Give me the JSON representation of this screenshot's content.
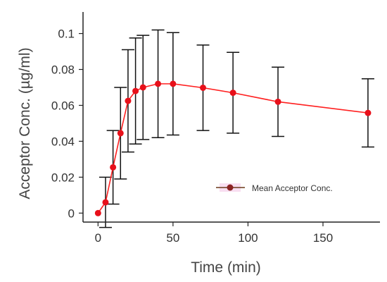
{
  "chart_data": {
    "type": "line",
    "xlabel": "Time (min)",
    "ylabel": "Acceptor Conc. (µg/ml)",
    "xlim": [
      -10,
      188
    ],
    "ylim": [
      -0.005,
      0.112
    ],
    "x_ticks": [
      0,
      50,
      100,
      150
    ],
    "y_ticks": [
      0,
      0.02,
      0.04,
      0.06,
      0.08,
      0.1
    ],
    "grid": false,
    "legend_position": "lower-right",
    "colors": {
      "line": "#ff2020",
      "marker": "#e8101a",
      "legend_marker": "#8b2323",
      "legend_line": "#6b3a1a",
      "error_bar": "#111111",
      "axis": "#222222"
    },
    "series": [
      {
        "name": "Mean Acceptor Conc.",
        "x": [
          0,
          5,
          10,
          15,
          20,
          25,
          30,
          40,
          50,
          70,
          90,
          120,
          180
        ],
        "y": [
          0.0,
          0.006,
          0.0255,
          0.0445,
          0.0625,
          0.068,
          0.07,
          0.072,
          0.072,
          0.0698,
          0.067,
          0.062,
          0.0558
        ],
        "error": [
          0.0,
          0.014,
          0.0205,
          0.0255,
          0.0285,
          0.0295,
          0.029,
          0.03,
          0.0285,
          0.0238,
          0.0225,
          0.0193,
          0.019
        ]
      }
    ]
  }
}
